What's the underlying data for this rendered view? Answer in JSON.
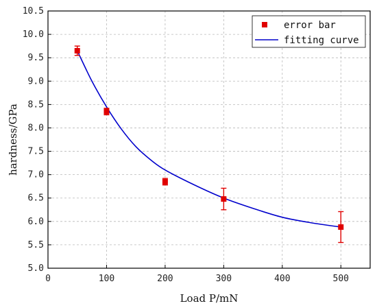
{
  "chart_data": {
    "type": "scatter",
    "xlabel": "Load P/mN",
    "ylabel": "hardness/GPa",
    "xlim": [
      0,
      550
    ],
    "ylim": [
      5.0,
      10.5
    ],
    "x_ticks": [
      0,
      100,
      200,
      300,
      400,
      500
    ],
    "y_ticks": [
      5.0,
      5.5,
      6.0,
      6.5,
      7.0,
      7.5,
      8.0,
      8.5,
      9.0,
      9.5,
      10.0,
      10.5
    ],
    "grid": true,
    "legend_position": "top-right",
    "series": [
      {
        "name": "error bar",
        "kind": "scatter-with-error",
        "color": "#e00000",
        "x": [
          50,
          100,
          200,
          300,
          500
        ],
        "y": [
          9.65,
          8.35,
          6.85,
          6.48,
          5.88
        ],
        "error": [
          0.1,
          0.07,
          0.07,
          0.23,
          0.33
        ]
      },
      {
        "name": "fitting curve",
        "kind": "line",
        "color": "#0000cc",
        "x": [
          50,
          75,
          100,
          125,
          150,
          175,
          200,
          250,
          300,
          350,
          400,
          450,
          500
        ],
        "y": [
          9.65,
          9.0,
          8.45,
          7.98,
          7.6,
          7.32,
          7.1,
          6.78,
          6.5,
          6.28,
          6.09,
          5.97,
          5.88
        ]
      }
    ]
  }
}
